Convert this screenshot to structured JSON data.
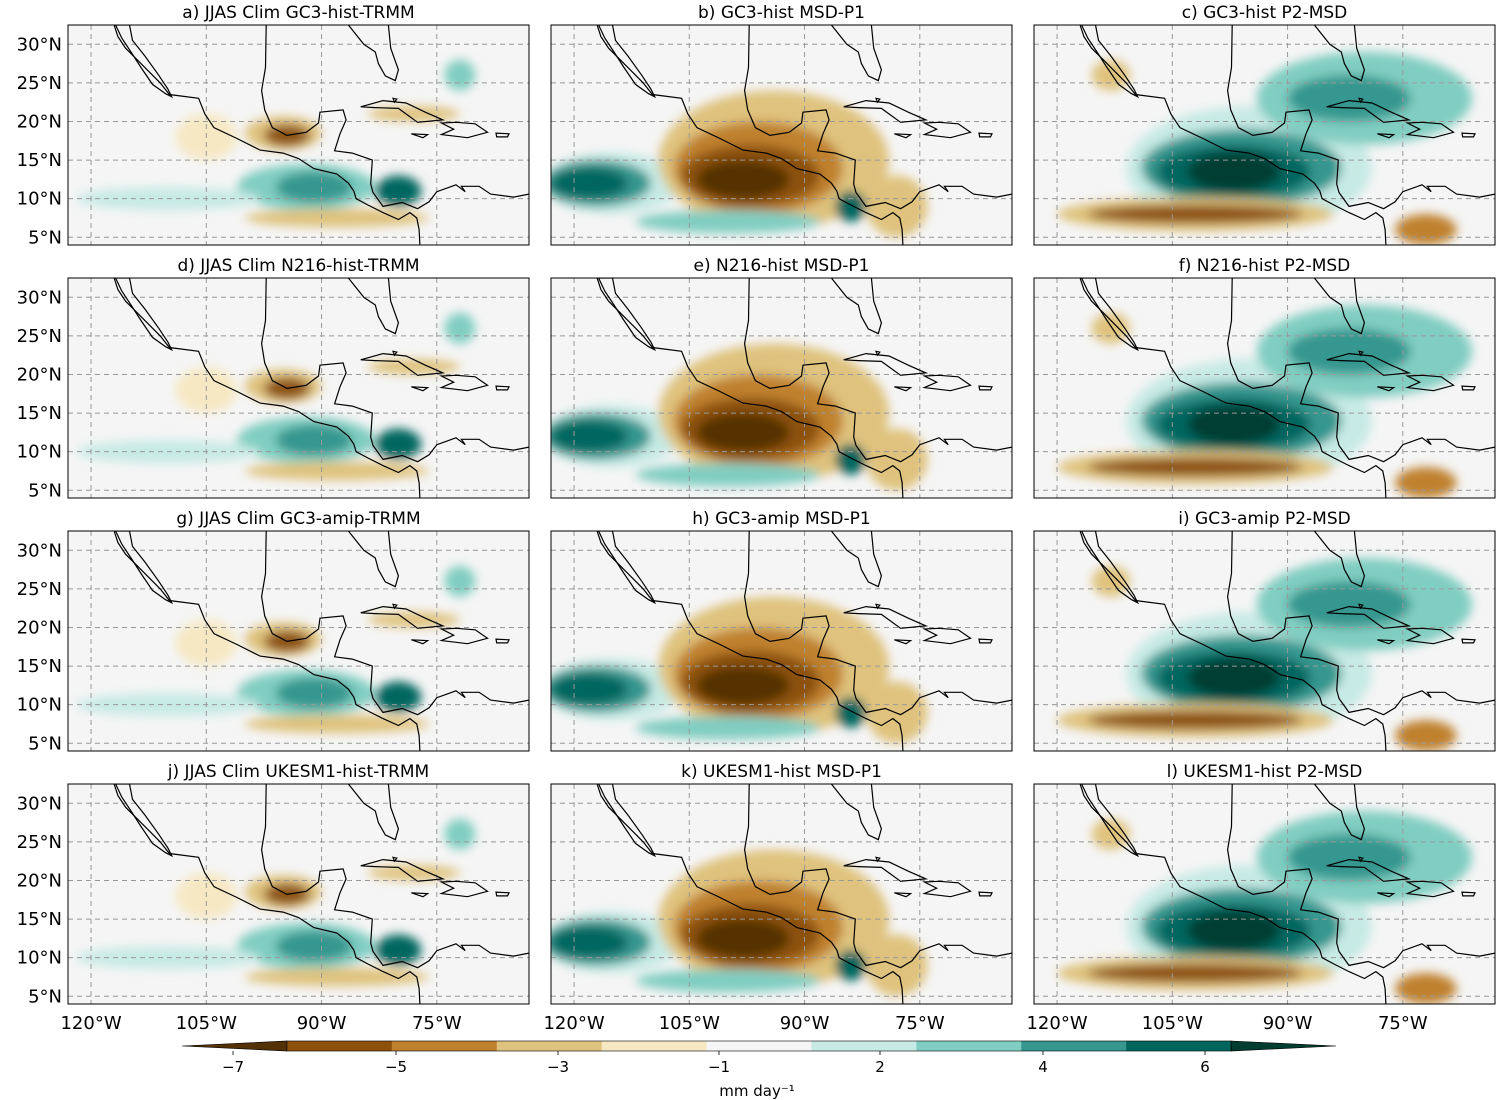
{
  "figure": {
    "panel_titles": [
      "a) JJAS Clim GC3-hist-TRMM",
      "b) GC3-hist MSD-P1",
      "c) GC3-hist P2-MSD",
      "d) JJAS Clim N216-hist-TRMM",
      "e) N216-hist MSD-P1",
      "f) N216-hist P2-MSD",
      "g) JJAS Clim GC3-amip-TRMM",
      "h) GC3-amip MSD-P1",
      "i) GC3-amip P2-MSD",
      "j) JJAS Clim UKESM1-hist-TRMM",
      "k) UKESM1-hist MSD-P1",
      "l) UKESM1-hist P2-MSD"
    ],
    "lat_labels": [
      "30°N",
      "25°N",
      "20°N",
      "15°N",
      "10°N",
      "5°N"
    ],
    "lat_values": [
      30,
      25,
      20,
      15,
      10,
      5
    ],
    "lon_labels": [
      "120°W",
      "105°W",
      "90°W",
      "75°W"
    ],
    "lon_values": [
      -120,
      -105,
      -90,
      -75
    ],
    "extent": {
      "lon": [
        -123,
        -63
      ],
      "lat": [
        4,
        32.5
      ]
    }
  },
  "colorbar": {
    "tick_labels": [
      "−7",
      "−5",
      "−3",
      "−1",
      "2",
      "4",
      "6"
    ],
    "units_label": "mm day⁻¹",
    "colors": [
      "#543005",
      "#8c510a",
      "#bf812d",
      "#dfc27d",
      "#f6e8c3",
      "#f5f5f5",
      "#c7eae5",
      "#80cdc1",
      "#35978f",
      "#01665e",
      "#003c30"
    ]
  },
  "colors": {
    "strong_dry": "#543005",
    "dry": "#8c510a",
    "mid_dry": "#bf812d",
    "light_dry": "#dfc27d",
    "faint_dry": "#f6e8c3",
    "neutral": "#f5f5f5",
    "faint_wet": "#c7eae5",
    "light_wet": "#80cdc1",
    "mid_wet": "#35978f",
    "wet": "#01665e",
    "strong_wet": "#003c30"
  }
}
